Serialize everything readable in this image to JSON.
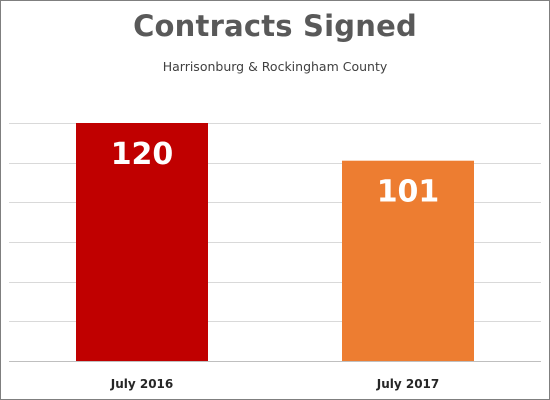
{
  "chart_data": {
    "type": "bar",
    "title": "Contracts Signed",
    "subtitle": "Harrisonburg & Rockingham County",
    "categories": [
      "July 2016",
      "July 2017"
    ],
    "values": [
      120,
      101
    ],
    "bar_colors": [
      "#c00000",
      "#ed7d31"
    ],
    "ylim": [
      0,
      120
    ],
    "y_gridline_step": 20,
    "grid": true,
    "xlabel": "",
    "ylabel": "",
    "data_labels": true,
    "legend": "none"
  }
}
